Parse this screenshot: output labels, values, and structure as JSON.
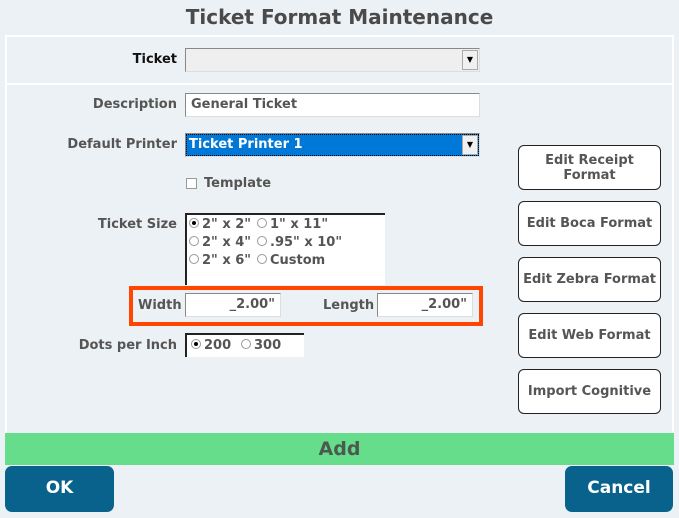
{
  "title": "Ticket Format Maintenance",
  "ticket": {
    "label": "Ticket",
    "value": ""
  },
  "description": {
    "label": "Description",
    "value": "General Ticket"
  },
  "printer": {
    "label": "Default Printer",
    "value": "Ticket Printer 1"
  },
  "template": {
    "label": "Template",
    "checked": false
  },
  "ticket_size": {
    "label": "Ticket Size",
    "options": [
      "2\" x 2\"",
      "1\" x 11\"",
      "2\" x 4\"",
      ".95\" x 10\"",
      "2\" x 6\"",
      "Custom"
    ],
    "selected": "2\" x 2\""
  },
  "width": {
    "label": "Width",
    "value": "_2.00\""
  },
  "length": {
    "label": "Length",
    "value": "_2.00\""
  },
  "dpi": {
    "label": "Dots per Inch",
    "options": [
      "200",
      "300"
    ],
    "selected": "200"
  },
  "side_buttons": [
    "Edit Receipt Format",
    "Edit Boca Format",
    "Edit Zebra Format",
    "Edit Web Format",
    "Import Cognitive"
  ],
  "add_label": "Add",
  "ok_label": "OK",
  "cancel_label": "Cancel",
  "colors": {
    "highlight": "#ff4500",
    "add_bar": "#66dd8a",
    "primary_button": "#08628c",
    "selection": "#0078d7"
  }
}
